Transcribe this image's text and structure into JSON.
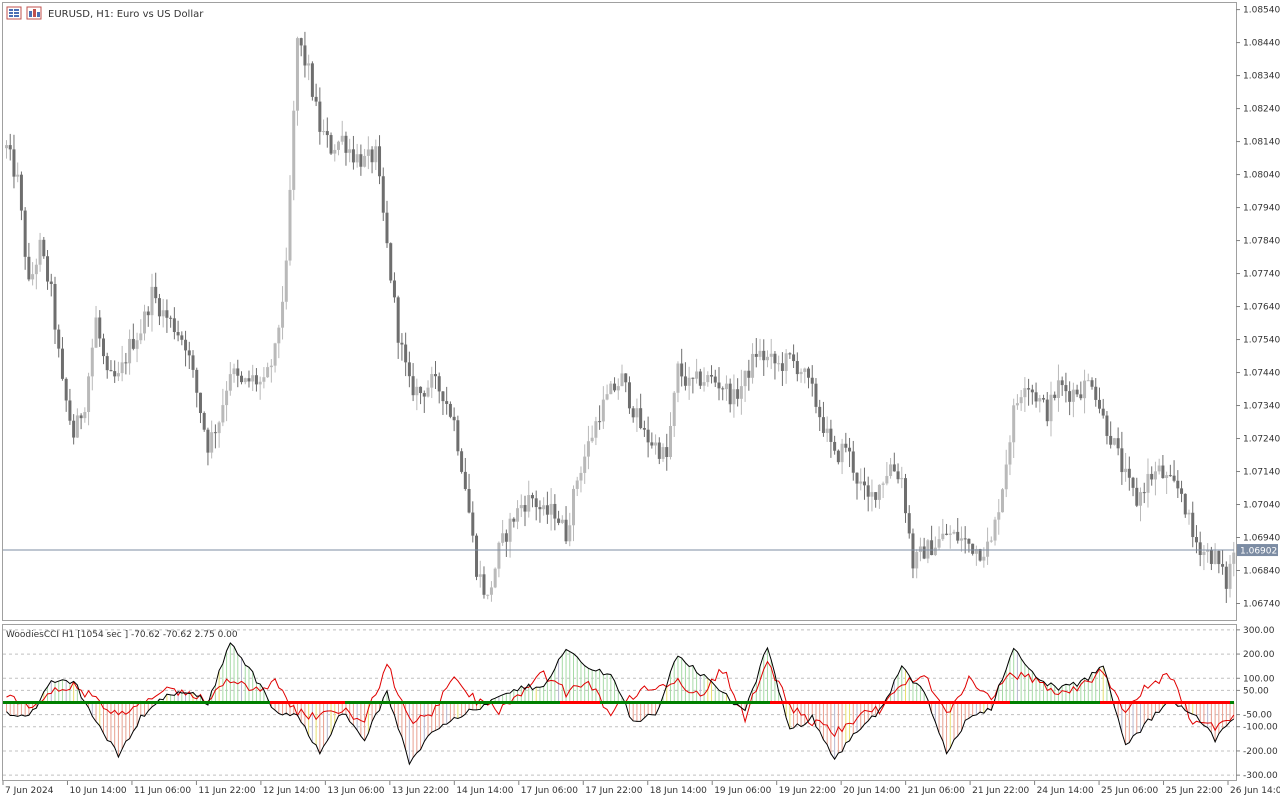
{
  "window": {
    "title": "EURUSD, H1:  Euro vs US Dollar",
    "icons": [
      "chart-settings-icon",
      "chart-bars-icon"
    ]
  },
  "colors": {
    "candle_up": "#b9b9b9",
    "candle_down": "#6e6e6e",
    "price_line": "#7c8ca3",
    "cci_line": "#000000",
    "turbo_line": "#e00000",
    "zero_line": "#008000",
    "zero_line_red": "#ff0000",
    "hist_up": "#a6dba6",
    "hist_down": "#e8a090",
    "hist_warn": "#e8e070",
    "hist_neutral": "#b8b8d0"
  },
  "chart_data": [
    {
      "type": "candlestick",
      "title": "EURUSD, H1:  Euro vs US Dollar",
      "symbol": "EURUSD",
      "timeframe": "H1",
      "current_price": "1.06902",
      "ylim": [
        1.0669,
        1.0856
      ],
      "y_ticks": [
        "1.08540",
        "1.08440",
        "1.08340",
        "1.08240",
        "1.08140",
        "1.08040",
        "1.07940",
        "1.07840",
        "1.07740",
        "1.07640",
        "1.07540",
        "1.07440",
        "1.07340",
        "1.07240",
        "1.07140",
        "1.07040",
        "1.06940",
        "1.06840",
        "1.06740"
      ],
      "x_ticks": [
        "7 Jun 2024",
        "10 Jun 14:00",
        "11 Jun 06:00",
        "11 Jun 22:00",
        "12 Jun 14:00",
        "13 Jun 06:00",
        "13 Jun 22:00",
        "14 Jun 14:00",
        "17 Jun 06:00",
        "17 Jun 22:00",
        "18 Jun 14:00",
        "19 Jun 06:00",
        "19 Jun 22:00",
        "20 Jun 14:00",
        "21 Jun 06:00",
        "21 Jun 22:00",
        "24 Jun 14:00",
        "25 Jun 06:00",
        "25 Jun 22:00",
        "26 Jun 14:00"
      ],
      "close_path": [
        [
          0,
          1.0812
        ],
        [
          3,
          1.0802
        ],
        [
          6,
          1.077
        ],
        [
          9,
          1.0782
        ],
        [
          12,
          1.0768
        ],
        [
          15,
          1.074
        ],
        [
          18,
          1.0725
        ],
        [
          21,
          1.0735
        ],
        [
          24,
          1.076
        ],
        [
          27,
          1.0742
        ],
        [
          30,
          1.0742
        ],
        [
          33,
          1.0752
        ],
        [
          36,
          1.0757
        ],
        [
          39,
          1.0768
        ],
        [
          42,
          1.0762
        ],
        [
          45,
          1.0758
        ],
        [
          48,
          1.0753
        ],
        [
          51,
          1.0738
        ],
        [
          54,
          1.0722
        ],
        [
          57,
          1.073
        ],
        [
          60,
          1.0745
        ],
        [
          63,
          1.074
        ],
        [
          66,
          1.0742
        ],
        [
          69,
          1.074
        ],
        [
          72,
          1.075
        ],
        [
          75,
          1.0775
        ],
        [
          78,
          1.0845
        ],
        [
          81,
          1.0835
        ],
        [
          84,
          1.0818
        ],
        [
          87,
          1.0812
        ],
        [
          90,
          1.0815
        ],
        [
          93,
          1.081
        ],
        [
          96,
          1.0808
        ],
        [
          99,
          1.081
        ],
        [
          102,
          1.0782
        ],
        [
          105,
          1.0756
        ],
        [
          108,
          1.074
        ],
        [
          111,
          1.0738
        ],
        [
          114,
          1.0741
        ],
        [
          117,
          1.0738
        ],
        [
          120,
          1.0729
        ],
        [
          123,
          1.071
        ],
        [
          126,
          1.0685
        ],
        [
          129,
          1.0675
        ],
        [
          132,
          1.069
        ],
        [
          135,
          1.0698
        ],
        [
          138,
          1.0704
        ],
        [
          141,
          1.0706
        ],
        [
          144,
          1.0701
        ],
        [
          147,
          1.0702
        ],
        [
          150,
          1.0695
        ],
        [
          153,
          1.0712
        ],
        [
          156,
          1.0722
        ],
        [
          159,
          1.0732
        ],
        [
          162,
          1.0738
        ],
        [
          165,
          1.0742
        ],
        [
          168,
          1.0733
        ],
        [
          171,
          1.0725
        ],
        [
          174,
          1.0722
        ],
        [
          177,
          1.0718
        ],
        [
          180,
          1.0745
        ],
        [
          183,
          1.074
        ],
        [
          186,
          1.0742
        ],
        [
          189,
          1.0742
        ],
        [
          192,
          1.074
        ],
        [
          195,
          1.0736
        ],
        [
          198,
          1.0742
        ],
        [
          201,
          1.075
        ],
        [
          204,
          1.0748
        ],
        [
          207,
          1.0746
        ],
        [
          210,
          1.0748
        ],
        [
          213,
          1.0745
        ],
        [
          216,
          1.0738
        ],
        [
          219,
          1.0728
        ],
        [
          222,
          1.0718
        ],
        [
          225,
          1.0722
        ],
        [
          228,
          1.0712
        ],
        [
          231,
          1.0705
        ],
        [
          234,
          1.071
        ],
        [
          237,
          1.0716
        ],
        [
          240,
          1.0712
        ],
        [
          243,
          1.0686
        ],
        [
          246,
          1.069
        ],
        [
          249,
          1.0692
        ],
        [
          252,
          1.0695
        ],
        [
          255,
          1.0694
        ],
        [
          258,
          1.0692
        ],
        [
          261,
          1.069
        ],
        [
          264,
          1.0692
        ],
        [
          267,
          1.071
        ],
        [
          270,
          1.0732
        ],
        [
          273,
          1.0742
        ],
        [
          276,
          1.0737
        ],
        [
          279,
          1.0732
        ],
        [
          282,
          1.074
        ],
        [
          285,
          1.0738
        ],
        [
          288,
          1.0739
        ],
        [
          291,
          1.0742
        ],
        [
          294,
          1.073
        ],
        [
          297,
          1.0722
        ],
        [
          300,
          1.0712
        ],
        [
          303,
          1.0705
        ],
        [
          306,
          1.0712
        ],
        [
          309,
          1.0714
        ],
        [
          312,
          1.071
        ],
        [
          315,
          1.0708
        ],
        [
          318,
          1.0694
        ],
        [
          321,
          1.069
        ],
        [
          324,
          1.0688
        ],
        [
          327,
          1.068
        ],
        [
          329,
          1.069
        ]
      ]
    },
    {
      "type": "indicator",
      "title": "WoodiesCCI H1 [1054 sec ] -70.62 -70.62 2.75 0.00",
      "ylim": [
        -320,
        320
      ],
      "y_ticks": [
        "300.00",
        "200.00",
        "100.00",
        "50.00",
        "-50.00",
        "-100.00",
        "-200.00",
        "-300.00"
      ],
      "levels": [
        300,
        200,
        100,
        50,
        0,
        -50,
        -100,
        -200,
        -300
      ],
      "cci_path": [
        [
          0,
          -40
        ],
        [
          6,
          -60
        ],
        [
          12,
          80
        ],
        [
          18,
          90
        ],
        [
          24,
          -80
        ],
        [
          30,
          -220
        ],
        [
          36,
          -60
        ],
        [
          42,
          20
        ],
        [
          48,
          50
        ],
        [
          54,
          0
        ],
        [
          60,
          250
        ],
        [
          66,
          120
        ],
        [
          72,
          -40
        ],
        [
          78,
          -60
        ],
        [
          84,
          -200
        ],
        [
          90,
          -40
        ],
        [
          96,
          -150
        ],
        [
          102,
          40
        ],
        [
          108,
          -250
        ],
        [
          114,
          -120
        ],
        [
          120,
          -60
        ],
        [
          126,
          -30
        ],
        [
          132,
          20
        ],
        [
          138,
          60
        ],
        [
          144,
          70
        ],
        [
          150,
          220
        ],
        [
          156,
          140
        ],
        [
          162,
          120
        ],
        [
          168,
          -80
        ],
        [
          174,
          -50
        ],
        [
          180,
          200
        ],
        [
          186,
          120
        ],
        [
          192,
          40
        ],
        [
          198,
          -40
        ],
        [
          204,
          230
        ],
        [
          210,
          -120
        ],
        [
          216,
          -60
        ],
        [
          222,
          -230
        ],
        [
          228,
          -120
        ],
        [
          234,
          -40
        ],
        [
          240,
          140
        ],
        [
          246,
          40
        ],
        [
          252,
          -200
        ],
        [
          258,
          -60
        ],
        [
          264,
          -20
        ],
        [
          270,
          220
        ],
        [
          276,
          100
        ],
        [
          282,
          60
        ],
        [
          288,
          80
        ],
        [
          294,
          150
        ],
        [
          300,
          -180
        ],
        [
          306,
          -80
        ],
        [
          312,
          10
        ],
        [
          318,
          -40
        ],
        [
          324,
          -150
        ],
        [
          329,
          -70
        ]
      ],
      "turbo_path": [
        [
          0,
          20
        ],
        [
          6,
          -20
        ],
        [
          12,
          40
        ],
        [
          18,
          70
        ],
        [
          24,
          10
        ],
        [
          30,
          -60
        ],
        [
          36,
          -10
        ],
        [
          42,
          50
        ],
        [
          48,
          30
        ],
        [
          54,
          20
        ],
        [
          60,
          100
        ],
        [
          66,
          60
        ],
        [
          72,
          80
        ],
        [
          78,
          -40
        ],
        [
          84,
          -60
        ],
        [
          90,
          -20
        ],
        [
          96,
          -80
        ],
        [
          102,
          160
        ],
        [
          108,
          -80
        ],
        [
          114,
          -40
        ],
        [
          120,
          90
        ],
        [
          126,
          10
        ],
        [
          132,
          -30
        ],
        [
          138,
          30
        ],
        [
          144,
          120
        ],
        [
          150,
          40
        ],
        [
          156,
          80
        ],
        [
          162,
          -40
        ],
        [
          168,
          30
        ],
        [
          174,
          70
        ],
        [
          180,
          90
        ],
        [
          186,
          20
        ],
        [
          192,
          140
        ],
        [
          198,
          -60
        ],
        [
          204,
          170
        ],
        [
          210,
          -20
        ],
        [
          216,
          -80
        ],
        [
          222,
          -120
        ],
        [
          228,
          -60
        ],
        [
          234,
          -30
        ],
        [
          240,
          70
        ],
        [
          246,
          130
        ],
        [
          252,
          -60
        ],
        [
          258,
          100
        ],
        [
          264,
          20
        ],
        [
          270,
          120
        ],
        [
          276,
          90
        ],
        [
          282,
          40
        ],
        [
          288,
          60
        ],
        [
          294,
          140
        ],
        [
          300,
          -40
        ],
        [
          306,
          70
        ],
        [
          312,
          110
        ],
        [
          318,
          -80
        ],
        [
          324,
          -100
        ],
        [
          329,
          -60
        ]
      ]
    }
  ]
}
